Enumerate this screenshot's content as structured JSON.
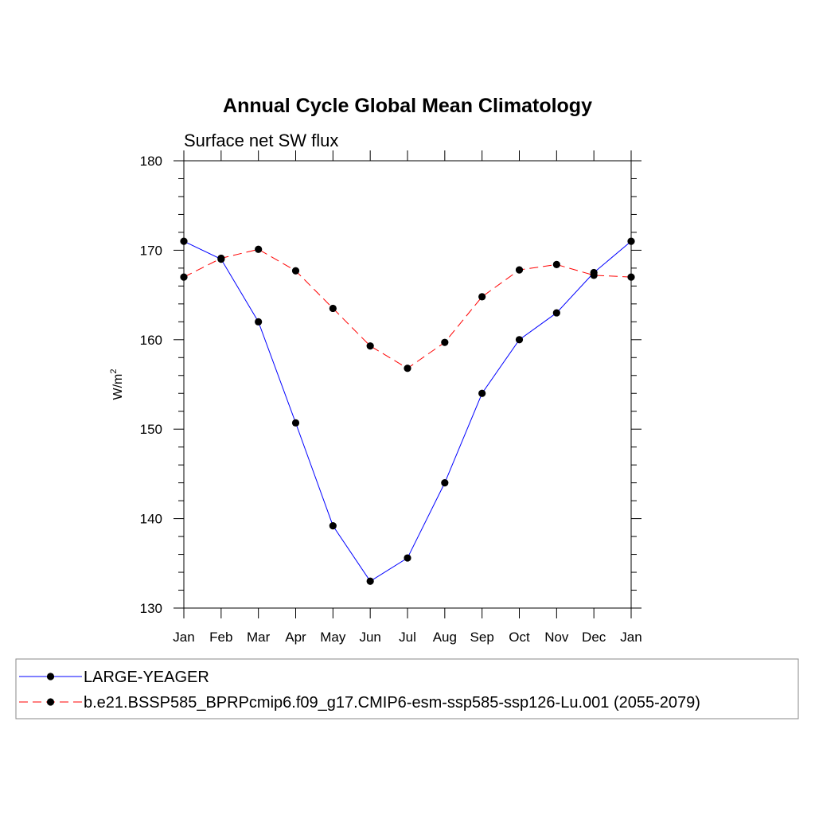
{
  "chart_data": {
    "type": "line",
    "title": "Annual Cycle Global Mean Climatology",
    "subtitle": "Surface net SW flux",
    "ylabel": "W/m",
    "ylabel_sup": "2",
    "xlabel": "",
    "ylim": [
      130,
      180
    ],
    "yticks": [
      "130",
      "140",
      "150",
      "160",
      "170",
      "180"
    ],
    "categories": [
      "Jan",
      "Feb",
      "Mar",
      "Apr",
      "May",
      "Jun",
      "Jul",
      "Aug",
      "Sep",
      "Oct",
      "Nov",
      "Dec",
      "Jan"
    ],
    "series": [
      {
        "name": "LARGE-YEAGER",
        "color": "#0000ff",
        "dash": "solid",
        "values": [
          171.0,
          169.0,
          162.0,
          150.7,
          139.2,
          133.0,
          135.6,
          144.0,
          154.0,
          160.0,
          163.0,
          167.5,
          171.0
        ]
      },
      {
        "name": "b.e21.BSSP585_BPRPcmip6.f09_g17.CMIP6-esm-ssp585-ssp126-Lu.001 (2055-2079)",
        "color": "#ff0000",
        "dash": "dashed",
        "values": [
          167.0,
          169.1,
          170.1,
          167.7,
          163.5,
          159.3,
          156.8,
          159.7,
          164.8,
          167.8,
          168.4,
          167.2,
          167.0
        ]
      }
    ]
  }
}
